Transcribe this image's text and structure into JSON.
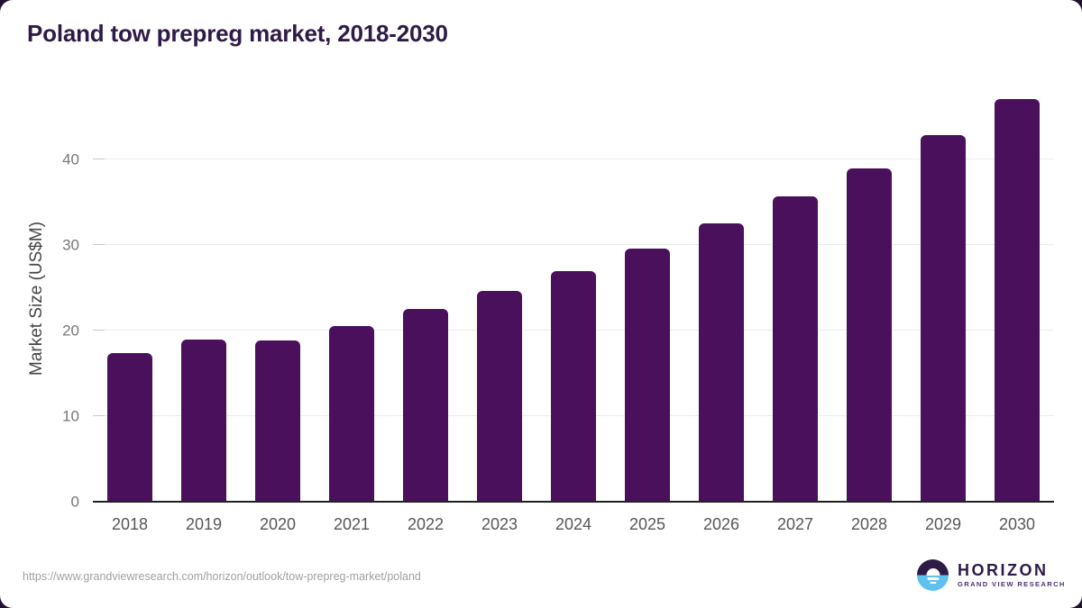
{
  "page": {
    "outside_background": "#211330",
    "card_background": "#ffffff"
  },
  "header": {
    "title": "Poland tow prepreg market, 2018-2030",
    "title_color": "#2e1a47"
  },
  "chart_data": {
    "type": "bar",
    "title": "Poland tow prepreg market, 2018-2030",
    "categories": [
      "2018",
      "2019",
      "2020",
      "2021",
      "2022",
      "2023",
      "2024",
      "2025",
      "2026",
      "2027",
      "2028",
      "2029",
      "2030"
    ],
    "values": [
      17.3,
      18.9,
      18.8,
      20.5,
      22.5,
      24.6,
      26.9,
      29.5,
      32.5,
      35.6,
      38.9,
      42.8,
      47.0
    ],
    "xlabel": "",
    "ylabel": "Market Size (US$M)",
    "ylim": [
      0,
      49.2
    ],
    "yticks": [
      0,
      10,
      20,
      30,
      40
    ],
    "bar_color": "#4a105c",
    "gridline_color": "#ececec",
    "axis_line_color": "#212121",
    "tick_label_color": "#777777",
    "x_label_color": "#575757",
    "grid": "horizontal-only",
    "legend": "none"
  },
  "footer": {
    "url": "https://www.grandviewresearch.com/horizon/outlook/tow-prepreg-market/poland",
    "logo": {
      "name": "HORIZON",
      "tagline": "GRAND VIEW RESEARCH",
      "icon": "horizon-sun-icon",
      "dark_color": "#2e1a47",
      "blue_color": "#5ec1ee"
    }
  }
}
